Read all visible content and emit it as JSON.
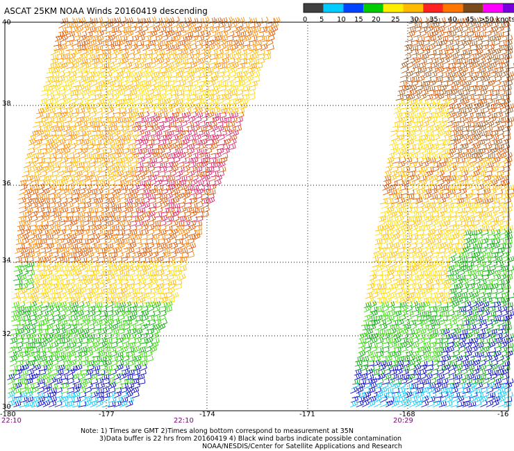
{
  "title": "ASCAT 25KM NOAA Winds 20160419 descending",
  "legend": {
    "labels": [
      "0",
      "5",
      "10",
      "15",
      "20",
      "25",
      "30",
      "35",
      "40",
      "45",
      ">50 knots"
    ],
    "colors": [
      "#404040",
      "#00ccff",
      "#0044ff",
      "#00cc00",
      "#ffee00",
      "#ffbb00",
      "#ff2222",
      "#ff7700",
      "#7a4a1a",
      "#ff00ff",
      "#7700dd"
    ]
  },
  "lat_labels": [
    "40",
    "38",
    "36",
    "34",
    "32",
    "30"
  ],
  "lon_labels": [
    "-180",
    "-177",
    "-174",
    "-171",
    "-168",
    "-16"
  ],
  "time_labels": [
    "22:10",
    "22:10",
    "20:29"
  ],
  "notes": {
    "line1": "Note: 1) Times are GMT 2)Times along bottom correspond to measurement at 35N",
    "line2": "3)Data buffer is 22 hrs from 20160419 4) Black wind barbs indicate possible contamination",
    "line3": "NOAA/NESDIS/Center for Satellite Applications and Research"
  },
  "wind_color_scale": {
    "calm": "#404040",
    "cyan": "#00ccff",
    "blue": "#0000cc",
    "green": "#00aa00",
    "lightgreen": "#33dd00",
    "yellow": "#ffdd00",
    "gold": "#ffbb00",
    "orange": "#ff8800",
    "darkorange": "#dd5500",
    "red": "#ff2222",
    "crimson": "#dd2266",
    "brown": "#a05a20"
  }
}
